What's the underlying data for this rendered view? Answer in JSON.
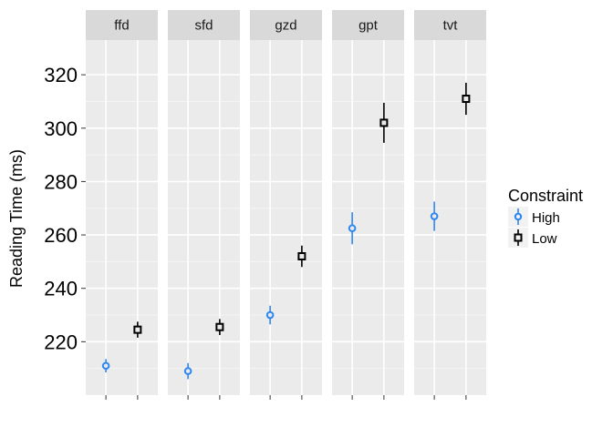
{
  "chart_data": {
    "type": "scatter",
    "ylabel": "Reading Time (ms)",
    "xlabel": "",
    "ylim": [
      200,
      333
    ],
    "yticks": [
      220,
      240,
      260,
      280,
      300,
      320
    ],
    "panels": [
      "ffd",
      "sfd",
      "gzd",
      "gpt",
      "tvt"
    ],
    "x_positions": [
      1,
      2
    ],
    "legend": {
      "title": "Constraint",
      "placement": "right"
    },
    "grid": true,
    "series": [
      {
        "name": "High",
        "color": "#2e86f0",
        "marker": "circle",
        "points": [
          {
            "panel": "ffd",
            "y": 211,
            "ymin": 208.5,
            "ymax": 213.5
          },
          {
            "panel": "sfd",
            "y": 209,
            "ymin": 206,
            "ymax": 212
          },
          {
            "panel": "gzd",
            "y": 230,
            "ymin": 226.5,
            "ymax": 233.5
          },
          {
            "panel": "gpt",
            "y": 262.5,
            "ymin": 256.5,
            "ymax": 268.5
          },
          {
            "panel": "tvt",
            "y": 267,
            "ymin": 261.5,
            "ymax": 272.5
          }
        ]
      },
      {
        "name": "Low",
        "color": "#000000",
        "marker": "square",
        "points": [
          {
            "panel": "ffd",
            "y": 224.5,
            "ymin": 221.5,
            "ymax": 227.5
          },
          {
            "panel": "sfd",
            "y": 225.5,
            "ymin": 222.5,
            "ymax": 228.5
          },
          {
            "panel": "gzd",
            "y": 252,
            "ymin": 248,
            "ymax": 256
          },
          {
            "panel": "gpt",
            "y": 302,
            "ymin": 294.5,
            "ymax": 309.5
          },
          {
            "panel": "tvt",
            "y": 311,
            "ymin": 305,
            "ymax": 317
          }
        ]
      }
    ]
  }
}
